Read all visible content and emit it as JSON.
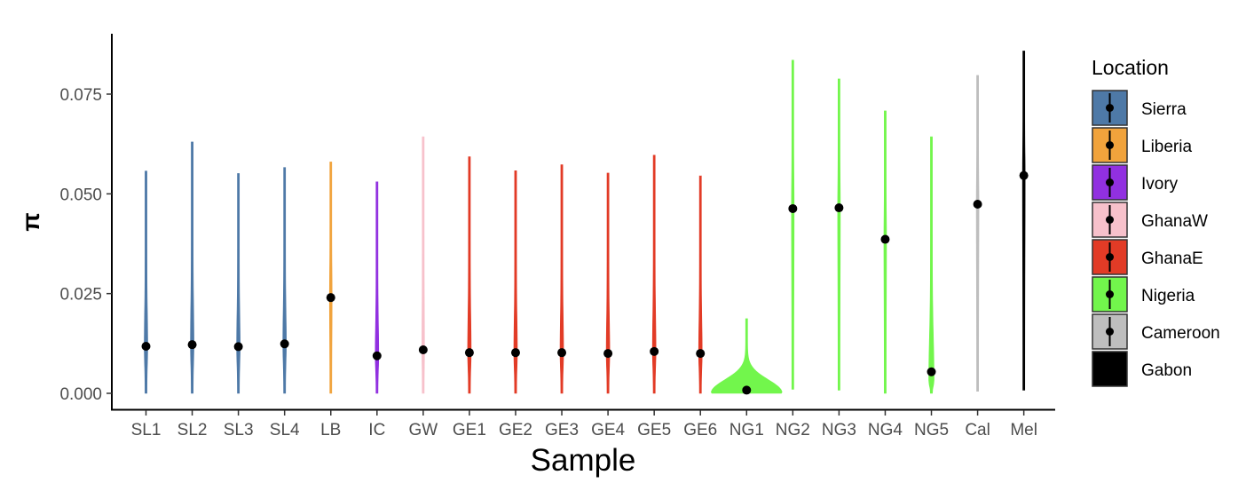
{
  "chart_data": {
    "type": "violin",
    "xlabel": "Sample",
    "ylabel": "π",
    "ylim": [
      -0.0015,
      0.09
    ],
    "yticks": [
      0.0,
      0.025,
      0.05,
      0.075
    ],
    "ytick_labels": [
      "0.000",
      "0.025",
      "0.050",
      "0.075"
    ],
    "grid": false,
    "legend": {
      "title": "Location",
      "placement": "right",
      "entries": [
        {
          "name": "Sierra",
          "color": "#4E79A7"
        },
        {
          "name": "Liberia",
          "color": "#F1A33C"
        },
        {
          "name": "Ivory",
          "color": "#9130E0"
        },
        {
          "name": "GhanaW",
          "color": "#F7C1CB"
        },
        {
          "name": "GhanaE",
          "color": "#E23B26"
        },
        {
          "name": "Nigeria",
          "color": "#72F64C"
        },
        {
          "name": "Cameroon",
          "color": "#BEBEBE"
        },
        {
          "name": "Gabon",
          "color": "#000000"
        }
      ]
    },
    "samples": [
      {
        "name": "SL1",
        "location": "Sierra",
        "min": 0.0,
        "max": 0.0557,
        "mean": 0.0118,
        "mode": 0.0118,
        "maxwidth": 4
      },
      {
        "name": "SL2",
        "location": "Sierra",
        "min": 0.0,
        "max": 0.063,
        "mean": 0.0122,
        "mode": 0.0122,
        "maxwidth": 4
      },
      {
        "name": "SL3",
        "location": "Sierra",
        "min": 0.0,
        "max": 0.0551,
        "mean": 0.0117,
        "mode": 0.0117,
        "maxwidth": 4
      },
      {
        "name": "SL4",
        "location": "Sierra",
        "min": 0.0,
        "max": 0.0566,
        "mean": 0.0124,
        "mode": 0.0124,
        "maxwidth": 4
      },
      {
        "name": "LB",
        "location": "Liberia",
        "min": 0.0,
        "max": 0.058,
        "mean": 0.024,
        "mode": 0.024,
        "maxwidth": 3
      },
      {
        "name": "IC",
        "location": "Ivory",
        "min": 0.0,
        "max": 0.053,
        "mean": 0.0094,
        "mode": 0.0094,
        "maxwidth": 4
      },
      {
        "name": "GW",
        "location": "GhanaW",
        "min": 0.0,
        "max": 0.0643,
        "mean": 0.0109,
        "mode": 0.0109,
        "maxwidth": 3
      },
      {
        "name": "GE1",
        "location": "GhanaE",
        "min": 0.0,
        "max": 0.0593,
        "mean": 0.0102,
        "mode": 0.0102,
        "maxwidth": 4
      },
      {
        "name": "GE2",
        "location": "GhanaE",
        "min": 0.0,
        "max": 0.0558,
        "mean": 0.0102,
        "mode": 0.0102,
        "maxwidth": 4
      },
      {
        "name": "GE3",
        "location": "GhanaE",
        "min": 0.0,
        "max": 0.0573,
        "mean": 0.0102,
        "mode": 0.0102,
        "maxwidth": 4
      },
      {
        "name": "GE4",
        "location": "GhanaE",
        "min": 0.0,
        "max": 0.0552,
        "mean": 0.01,
        "mode": 0.01,
        "maxwidth": 4
      },
      {
        "name": "GE5",
        "location": "GhanaE",
        "min": 0.0,
        "max": 0.0597,
        "mean": 0.0105,
        "mode": 0.0105,
        "maxwidth": 4
      },
      {
        "name": "GE6",
        "location": "GhanaE",
        "min": 0.0,
        "max": 0.0545,
        "mean": 0.01,
        "mode": 0.01,
        "maxwidth": 4
      },
      {
        "name": "NG1",
        "location": "Nigeria",
        "min": 0.0,
        "max": 0.0187,
        "mean": 0.0008,
        "mode": 0.0001,
        "maxwidth": 80
      },
      {
        "name": "NG2",
        "location": "Nigeria",
        "min": 0.001,
        "max": 0.0835,
        "mean": 0.0463,
        "mode": 0.0463,
        "maxwidth": 3
      },
      {
        "name": "NG3",
        "location": "Nigeria",
        "min": 0.0008,
        "max": 0.0788,
        "mean": 0.0465,
        "mode": 0.0465,
        "maxwidth": 3
      },
      {
        "name": "NG4",
        "location": "Nigeria",
        "min": 0.0,
        "max": 0.0708,
        "mean": 0.0386,
        "mode": 0.0386,
        "maxwidth": 3
      },
      {
        "name": "NG5",
        "location": "Nigeria",
        "min": 0.0,
        "max": 0.0643,
        "mean": 0.0054,
        "mode": 0.003,
        "maxwidth": 6
      },
      {
        "name": "Cal",
        "location": "Cameroon",
        "min": 0.0005,
        "max": 0.0797,
        "mean": 0.0474,
        "mode": 0.0474,
        "maxwidth": 3
      },
      {
        "name": "Mel",
        "location": "Gabon",
        "min": 0.0008,
        "max": 0.0858,
        "mean": 0.0546,
        "mode": 0.0546,
        "maxwidth": 3
      }
    ]
  }
}
